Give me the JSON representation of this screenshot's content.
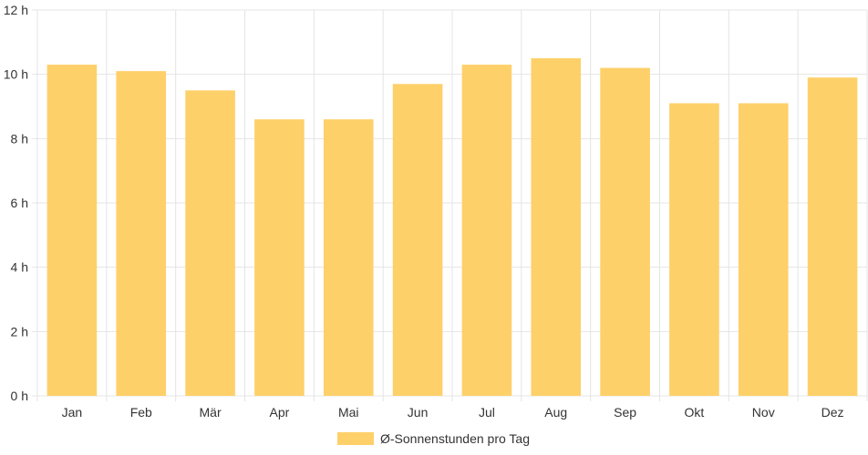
{
  "chart_data": {
    "type": "bar",
    "categories": [
      "Jan",
      "Feb",
      "Mär",
      "Apr",
      "Mai",
      "Jun",
      "Jul",
      "Aug",
      "Sep",
      "Okt",
      "Nov",
      "Dez"
    ],
    "series": [
      {
        "name": "Ø-Sonnenstunden pro Tag",
        "values": [
          10.3,
          10.1,
          9.5,
          8.6,
          8.6,
          9.7,
          10.3,
          10.5,
          10.2,
          9.1,
          9.1,
          9.9
        ],
        "color": "#fed06a"
      }
    ],
    "y_ticks": [
      "0 h",
      "2 h",
      "4 h",
      "6 h",
      "8 h",
      "10 h",
      "12 h"
    ],
    "ylim": [
      0,
      12
    ],
    "title": "",
    "xlabel": "",
    "ylabel": "",
    "grid": true,
    "legend": "bottom"
  }
}
